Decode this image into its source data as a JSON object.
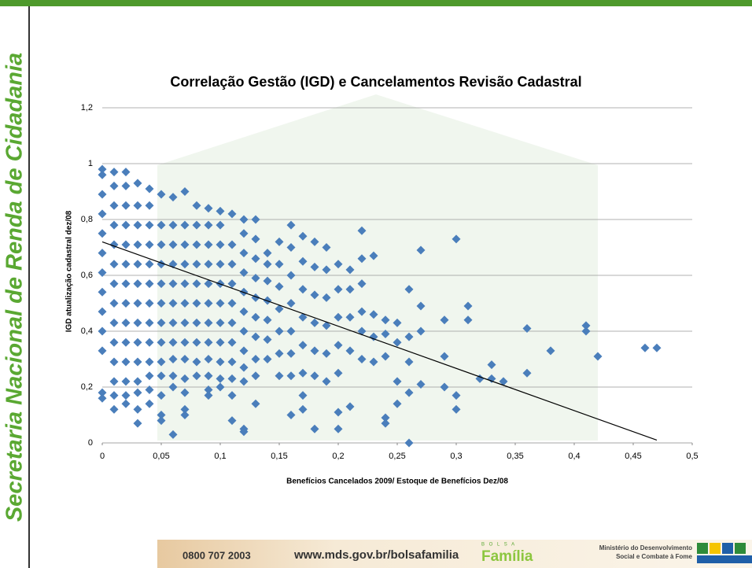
{
  "slide": {
    "side_title": "Secretaria Nacional de Renda de Cidadania",
    "phone": "0800 707 2003",
    "url": "www.mds.gov.br/bolsafamilia",
    "logo_top": "B O L S A",
    "logo_name": "Família",
    "ministry_1": "Ministério do Desenvolvimento",
    "ministry_2": "Social e Combate à Fome"
  },
  "chart_data": {
    "type": "scatter",
    "title": "Correlação Gestão (IGD) e Cancelamentos Revisão Cadastral",
    "x_label": "Benefícios Cancelados 2009/ Estoque de Benefícios Dez/08",
    "y_label": "IGD atualização cadastral dez/08",
    "color": "#4a7ebb",
    "xlim": [
      0,
      0.5
    ],
    "xticks": [
      0,
      {
        "value": 0.05,
        "label": "0,05"
      },
      {
        "value": 0.1,
        "label": "0,1"
      },
      {
        "value": 0.15,
        "label": "0,15"
      },
      {
        "value": 0.2,
        "label": "0,2"
      },
      {
        "value": 0.25,
        "label": "0,25"
      },
      {
        "value": 0.3,
        "label": "0,3"
      },
      {
        "value": 0.35,
        "label": "0,35"
      },
      {
        "value": 0.4,
        "label": "0,4"
      },
      {
        "value": 0.45,
        "label": "0,45"
      },
      {
        "value": 0.5,
        "label": "0,5"
      }
    ],
    "ylim": [
      0,
      1.2
    ],
    "yticks": [
      0,
      {
        "value": 0.2,
        "label": "0,2"
      },
      {
        "value": 0.4,
        "label": "0,4"
      },
      {
        "value": 0.6,
        "label": "0,6"
      },
      {
        "value": 0.8,
        "label": "0,8"
      },
      1,
      {
        "value": 1.2,
        "label": "1,2"
      }
    ],
    "grid": true,
    "x": [
      0,
      0,
      0,
      0,
      0,
      0,
      0,
      0,
      0,
      0,
      0,
      0,
      0,
      0.01,
      0.01,
      0.01,
      0.01,
      0.01,
      0.01,
      0.01,
      0.01,
      0.01,
      0.01,
      0.01,
      0.01,
      0.01,
      0.01,
      0.02,
      0.02,
      0.02,
      0.02,
      0.02,
      0.02,
      0.02,
      0.02,
      0.02,
      0.02,
      0.02,
      0.02,
      0.02,
      0.02,
      0.03,
      0.03,
      0.03,
      0.03,
      0.03,
      0.03,
      0.03,
      0.03,
      0.03,
      0.03,
      0.03,
      0.03,
      0.03,
      0.03,
      0.04,
      0.04,
      0.04,
      0.04,
      0.04,
      0.04,
      0.04,
      0.04,
      0.04,
      0.04,
      0.04,
      0.04,
      0.04,
      0.05,
      0.05,
      0.05,
      0.05,
      0.05,
      0.05,
      0.05,
      0.05,
      0.05,
      0.05,
      0.05,
      0.05,
      0.05,
      0.06,
      0.06,
      0.06,
      0.06,
      0.06,
      0.06,
      0.06,
      0.06,
      0.06,
      0.06,
      0.06,
      0.06,
      0.07,
      0.07,
      0.07,
      0.07,
      0.07,
      0.07,
      0.07,
      0.07,
      0.07,
      0.07,
      0.07,
      0.07,
      0.07,
      0.08,
      0.08,
      0.08,
      0.08,
      0.08,
      0.08,
      0.08,
      0.08,
      0.08,
      0.08,
      0.09,
      0.09,
      0.09,
      0.09,
      0.09,
      0.09,
      0.09,
      0.09,
      0.09,
      0.09,
      0.09,
      0.09,
      0.1,
      0.1,
      0.1,
      0.1,
      0.1,
      0.1,
      0.1,
      0.1,
      0.1,
      0.1,
      0.1,
      0.11,
      0.11,
      0.11,
      0.11,
      0.11,
      0.11,
      0.11,
      0.11,
      0.11,
      0.11,
      0.11,
      0.12,
      0.12,
      0.12,
      0.12,
      0.12,
      0.12,
      0.12,
      0.12,
      0.12,
      0.12,
      0.12,
      0.12,
      0.13,
      0.13,
      0.13,
      0.13,
      0.13,
      0.13,
      0.13,
      0.13,
      0.13,
      0.13,
      0.14,
      0.14,
      0.14,
      0.14,
      0.14,
      0.14,
      0.14,
      0.15,
      0.15,
      0.15,
      0.15,
      0.15,
      0.15,
      0.15,
      0.16,
      0.16,
      0.16,
      0.16,
      0.16,
      0.16,
      0.16,
      0.16,
      0.17,
      0.17,
      0.17,
      0.17,
      0.17,
      0.17,
      0.17,
      0.17,
      0.18,
      0.18,
      0.18,
      0.18,
      0.18,
      0.18,
      0.18,
      0.19,
      0.19,
      0.19,
      0.19,
      0.19,
      0.19,
      0.2,
      0.2,
      0.2,
      0.2,
      0.2,
      0.2,
      0.2,
      0.21,
      0.21,
      0.21,
      0.21,
      0.21,
      0.22,
      0.22,
      0.22,
      0.22,
      0.22,
      0.22,
      0.23,
      0.23,
      0.23,
      0.23,
      0.24,
      0.24,
      0.24,
      0.24,
      0.24,
      0.25,
      0.25,
      0.25,
      0.25,
      0.26,
      0.26,
      0.26,
      0.26,
      0.26,
      0.27,
      0.27,
      0.27,
      0.27,
      0.29,
      0.29,
      0.29,
      0.3,
      0.3,
      0.3,
      0.31,
      0.31,
      0.32,
      0.33,
      0.33,
      0.34,
      0.36,
      0.36,
      0.38,
      0.41,
      0.41,
      0.42,
      0.46,
      0.47
    ],
    "values": [
      0.16,
      0.18,
      0.33,
      0.4,
      0.47,
      0.54,
      0.61,
      0.68,
      0.75,
      0.82,
      0.89,
      0.96,
      0.98,
      0.12,
      0.17,
      0.22,
      0.29,
      0.36,
      0.43,
      0.5,
      0.57,
      0.64,
      0.71,
      0.78,
      0.85,
      0.92,
      0.97,
      0.14,
      0.17,
      0.22,
      0.29,
      0.36,
      0.43,
      0.5,
      0.57,
      0.64,
      0.71,
      0.78,
      0.85,
      0.92,
      0.97,
      0.07,
      0.12,
      0.18,
      0.22,
      0.29,
      0.36,
      0.43,
      0.5,
      0.57,
      0.64,
      0.71,
      0.78,
      0.85,
      0.93,
      0.14,
      0.19,
      0.24,
      0.29,
      0.36,
      0.43,
      0.5,
      0.57,
      0.64,
      0.71,
      0.78,
      0.85,
      0.91,
      0.08,
      0.1,
      0.17,
      0.24,
      0.29,
      0.36,
      0.43,
      0.5,
      0.57,
      0.64,
      0.71,
      0.78,
      0.89,
      0.03,
      0.2,
      0.24,
      0.3,
      0.36,
      0.43,
      0.5,
      0.57,
      0.64,
      0.71,
      0.78,
      0.88,
      0.1,
      0.12,
      0.18,
      0.23,
      0.3,
      0.36,
      0.43,
      0.5,
      0.57,
      0.64,
      0.71,
      0.78,
      0.9,
      0.24,
      0.29,
      0.36,
      0.43,
      0.5,
      0.57,
      0.64,
      0.71,
      0.78,
      0.85,
      0.17,
      0.19,
      0.24,
      0.3,
      0.36,
      0.43,
      0.5,
      0.57,
      0.64,
      0.71,
      0.78,
      0.84,
      0.2,
      0.23,
      0.29,
      0.36,
      0.43,
      0.5,
      0.57,
      0.64,
      0.71,
      0.78,
      0.83,
      0.08,
      0.17,
      0.23,
      0.29,
      0.36,
      0.43,
      0.5,
      0.57,
      0.64,
      0.71,
      0.82,
      0.04,
      0.05,
      0.22,
      0.27,
      0.33,
      0.4,
      0.47,
      0.54,
      0.61,
      0.68,
      0.75,
      0.8,
      0.14,
      0.24,
      0.3,
      0.38,
      0.45,
      0.52,
      0.59,
      0.66,
      0.73,
      0.8,
      0.3,
      0.37,
      0.44,
      0.51,
      0.58,
      0.64,
      0.68,
      0.24,
      0.32,
      0.4,
      0.48,
      0.56,
      0.64,
      0.72,
      0.1,
      0.24,
      0.32,
      0.4,
      0.5,
      0.6,
      0.7,
      0.78,
      0.12,
      0.17,
      0.25,
      0.35,
      0.45,
      0.55,
      0.65,
      0.74,
      0.05,
      0.24,
      0.33,
      0.43,
      0.53,
      0.63,
      0.72,
      0.22,
      0.32,
      0.42,
      0.52,
      0.62,
      0.7,
      0.05,
      0.11,
      0.25,
      0.35,
      0.45,
      0.55,
      0.64,
      0.13,
      0.33,
      0.45,
      0.55,
      0.62,
      0.3,
      0.4,
      0.47,
      0.57,
      0.66,
      0.76,
      0.29,
      0.38,
      0.46,
      0.67,
      0.07,
      0.09,
      0.31,
      0.39,
      0.44,
      0.14,
      0.22,
      0.36,
      0.43,
      0,
      0.18,
      0.29,
      0.38,
      0.55,
      0.21,
      0.4,
      0.49,
      0.69,
      0.2,
      0.31,
      0.44,
      0.12,
      0.17,
      0.73,
      0.44,
      0.49,
      0.23,
      0.23,
      0.28,
      0.22,
      0.25,
      0.41,
      0.33,
      0.4,
      0.42,
      0.31,
      0.34,
      0.34
    ],
    "trendline": {
      "x": [
        0,
        0.47
      ],
      "y": [
        0.72,
        0.01
      ],
      "color": "#000000"
    }
  }
}
